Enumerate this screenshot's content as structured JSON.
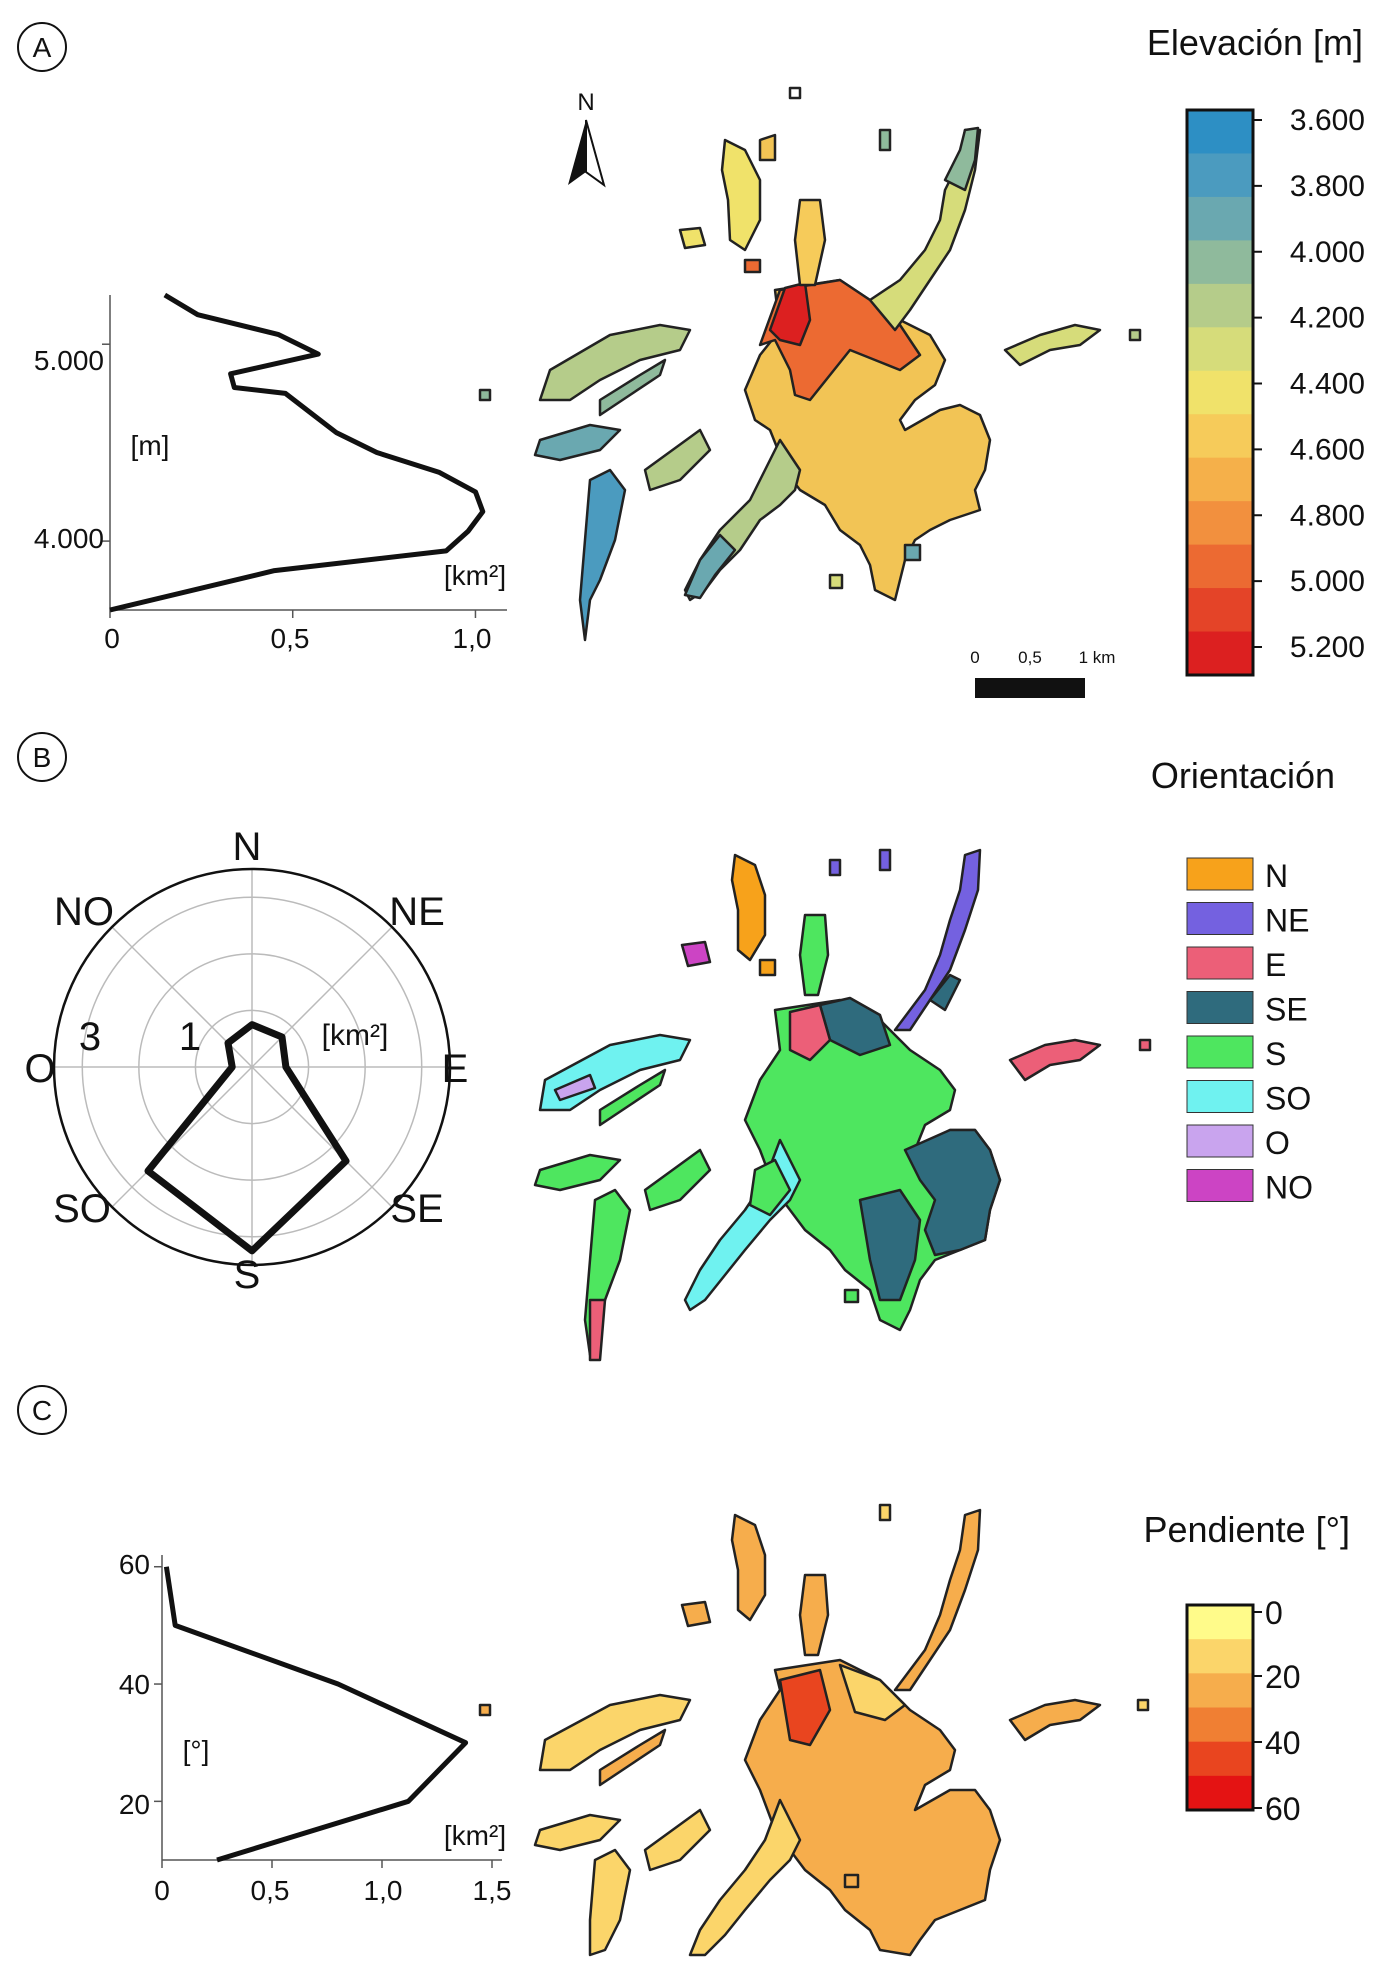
{
  "panels": {
    "A": {
      "letter": "A",
      "legend_title": "Elevación [m]",
      "legend_labels": [
        "3.600",
        "3.800",
        "4.000",
        "4.200",
        "4.400",
        "4.600",
        "4.800",
        "5.000",
        "5.200"
      ],
      "legend_colors": [
        "#2d8fc4",
        "#4b9bbf",
        "#6aa8b0",
        "#8fba9c",
        "#b5cc8a",
        "#d6dc7a",
        "#f0e26a",
        "#f6cb5a",
        "#f5b04a",
        "#f2903e",
        "#ec6a32",
        "#e44428",
        "#dc2020"
      ],
      "north_label": "N",
      "scale_labels": [
        "0",
        "0,5",
        "1 km"
      ],
      "chart_ylabel": "[m]",
      "chart_xlabel": "[km²]",
      "chart_xticks": [
        "0",
        "0,5",
        "1,0"
      ],
      "chart_yticks": [
        "5.000",
        "4.000"
      ]
    },
    "B": {
      "letter": "B",
      "legend_title": "Orientación",
      "legend_items": [
        {
          "label": "N",
          "color": "#f7a21b"
        },
        {
          "label": "NE",
          "color": "#7461e0"
        },
        {
          "label": "E",
          "color": "#ec5f78"
        },
        {
          "label": "SE",
          "color": "#2f6b7d"
        },
        {
          "label": "S",
          "color": "#4ee65f"
        },
        {
          "label": "SO",
          "color": "#6ff2f0"
        },
        {
          "label": "O",
          "color": "#c9a4ee"
        },
        {
          "label": "NO",
          "color": "#cc44c4"
        }
      ],
      "rose_directions": [
        "N",
        "NE",
        "E",
        "SE",
        "S",
        "SO",
        "O",
        "NO"
      ],
      "rose_ring_labels": [
        "3",
        "1"
      ],
      "rose_unit": "[km²]"
    },
    "C": {
      "letter": "C",
      "legend_title": "Pendiente [°]",
      "legend_labels": [
        "0",
        "20",
        "40",
        "60"
      ],
      "legend_colors": [
        "#fffb8a",
        "#fbd56a",
        "#f6ad4c",
        "#f07f33",
        "#e9451f",
        "#e41313"
      ],
      "chart_ylabel": "[°]",
      "chart_xlabel": "[km²]",
      "chart_xticks": [
        "0",
        "0,5",
        "1,0",
        "1,5"
      ],
      "chart_yticks": [
        "60",
        "40",
        "20"
      ]
    }
  },
  "chart_data": [
    {
      "type": "line",
      "title": "",
      "xlabel": "[km²]",
      "ylabel": "[m]",
      "xlim": [
        0,
        1.1
      ],
      "ylim": [
        3650,
        5250
      ],
      "x": [
        0.0,
        0.45,
        0.92,
        0.98,
        1.02,
        1.0,
        0.9,
        0.73,
        0.62,
        0.55,
        0.48,
        0.34,
        0.33,
        0.57,
        0.46,
        0.24,
        0.15
      ],
      "y": [
        3650,
        3850,
        3950,
        4050,
        4150,
        4250,
        4350,
        4450,
        4550,
        4650,
        4750,
        4780,
        4850,
        4950,
        5050,
        5150,
        5250
      ]
    },
    {
      "type": "radar",
      "title": "",
      "categories": [
        "N",
        "NE",
        "E",
        "SE",
        "S",
        "SO",
        "O",
        "NO"
      ],
      "rmax": 3.5,
      "ring_labels": [
        1,
        3
      ],
      "values": [
        0.75,
        0.75,
        0.6,
        2.35,
        3.25,
        2.6,
        0.35,
        0.6
      ]
    },
    {
      "type": "line",
      "title": "",
      "xlabel": "[km²]",
      "ylabel": "[°]",
      "xlim": [
        0,
        1.5
      ],
      "ylim": [
        10,
        62
      ],
      "x": [
        0.25,
        1.12,
        1.38,
        0.8,
        0.06,
        0.02
      ],
      "y": [
        10,
        20,
        30,
        40,
        50,
        60
      ]
    }
  ]
}
